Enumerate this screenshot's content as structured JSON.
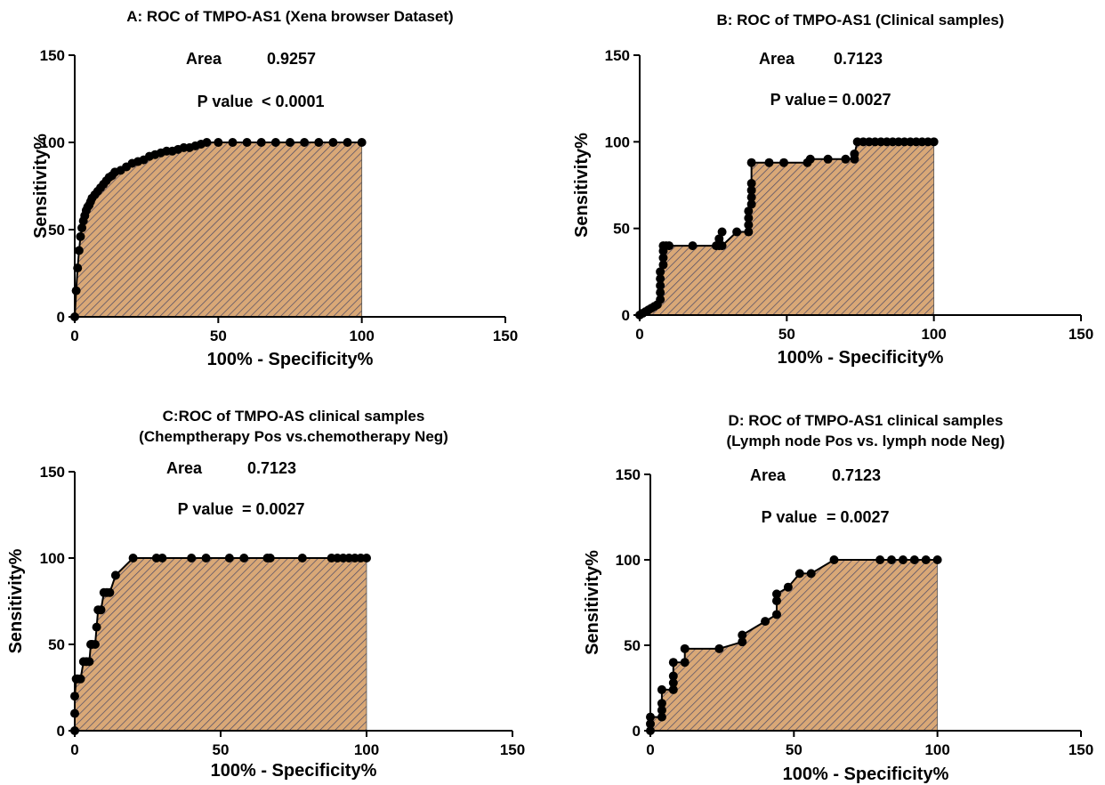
{
  "chart_data": [
    {
      "type": "area",
      "title_lines": [
        "A: ROC of TMPO-AS1 (Xena browser Dataset)"
      ],
      "xlabel": "100% - Specificity%",
      "ylabel": "Sensitivity%",
      "xlim": [
        0,
        150
      ],
      "ylim": [
        0,
        150
      ],
      "xticks": [
        0,
        50,
        100,
        150
      ],
      "yticks": [
        0,
        50,
        100,
        150
      ],
      "annotations": {
        "area_label": "Area",
        "area_value": "0.9257",
        "p_label": "P value",
        "p_value": "< 0.0001"
      },
      "fill_color": "#d9a877",
      "hatch_color": "#4a4a66",
      "marker_color": "#000000",
      "x": [
        0,
        0.5,
        1,
        1.5,
        2,
        2.5,
        3,
        3.5,
        4,
        4.5,
        5,
        5.5,
        6,
        7,
        8,
        9,
        10,
        11,
        12,
        13,
        14,
        16,
        18,
        20,
        22,
        24,
        26,
        28,
        30,
        32,
        34,
        36,
        38,
        40,
        42,
        44,
        46,
        50,
        55,
        60,
        65,
        70,
        75,
        80,
        85,
        90,
        95,
        100
      ],
      "y": [
        0,
        15,
        28,
        38,
        46,
        51,
        55,
        58,
        61,
        63,
        64,
        66,
        68,
        70,
        72,
        74,
        76,
        78,
        80,
        81,
        83,
        84,
        86,
        88,
        89,
        90,
        92,
        93,
        94,
        95,
        95,
        96,
        97,
        97,
        98,
        99,
        100,
        100,
        100,
        100,
        100,
        100,
        100,
        100,
        100,
        100,
        100,
        100
      ]
    },
    {
      "type": "area",
      "title_lines": [
        "B: ROC of TMPO-AS1 (Clinical samples)"
      ],
      "xlabel": "100% - Specificity%",
      "ylabel": "Sensitivity%",
      "xlim": [
        0,
        150
      ],
      "ylim": [
        0,
        150
      ],
      "xticks": [
        0,
        50,
        100,
        150
      ],
      "yticks": [
        0,
        50,
        100,
        150
      ],
      "annotations": {
        "area_label": "Area",
        "area_value": "0.7123",
        "p_label": "P value",
        "p_value": "= 0.0027"
      },
      "fill_color": "#d9a877",
      "hatch_color": "#4a4a66",
      "marker_color": "#000000",
      "x": [
        0,
        1,
        2,
        3,
        4,
        5,
        6,
        7,
        7,
        7,
        7,
        7,
        8,
        8,
        8,
        8,
        9,
        10,
        18,
        26,
        27,
        27,
        28,
        28,
        33,
        37,
        37,
        37,
        37,
        38,
        38,
        38,
        38,
        38,
        44,
        49,
        57,
        58,
        64,
        70,
        73,
        73,
        74,
        76,
        78,
        80,
        82,
        84,
        86,
        88,
        90,
        92,
        94,
        96,
        98,
        100
      ],
      "y": [
        0,
        1,
        2,
        3,
        4,
        5,
        6,
        9,
        13,
        17,
        21,
        25,
        29,
        33,
        37,
        40,
        40,
        40,
        40,
        40,
        40,
        44,
        48,
        40,
        48,
        48,
        52,
        56,
        60,
        64,
        68,
        72,
        76,
        88,
        88,
        88,
        88,
        90,
        90,
        90,
        90,
        93,
        100,
        100,
        100,
        100,
        100,
        100,
        100,
        100,
        100,
        100,
        100,
        100,
        100,
        100
      ]
    },
    {
      "type": "area",
      "title_lines": [
        "C:ROC of TMPO-AS clinical samples",
        "(Chemptherapy Pos  vs.chemotherapy Neg)"
      ],
      "xlabel": "100% - Specificity%",
      "ylabel": "Sensitivity%",
      "xlim": [
        0,
        150
      ],
      "ylim": [
        0,
        150
      ],
      "xticks": [
        0,
        50,
        100,
        150
      ],
      "yticks": [
        0,
        50,
        100,
        150
      ],
      "annotations": {
        "area_label": "Area",
        "area_value": "0.7123",
        "p_label": "P value",
        "p_value": "= 0.0027"
      },
      "fill_color": "#d9a877",
      "hatch_color": "#4a4a66",
      "marker_color": "#000000",
      "x": [
        0,
        0,
        0,
        0.5,
        1,
        2,
        3,
        4,
        5,
        5.5,
        6,
        7,
        7.5,
        8,
        9,
        10,
        11,
        12,
        14,
        20,
        28,
        30,
        40,
        45,
        53,
        58,
        66,
        67,
        78,
        88,
        90,
        92,
        94,
        96,
        98,
        100
      ],
      "y": [
        0,
        10,
        20,
        30,
        30,
        30,
        40,
        40,
        40,
        50,
        50,
        50,
        60,
        70,
        70,
        80,
        80,
        80,
        90,
        100,
        100,
        100,
        100,
        100,
        100,
        100,
        100,
        100,
        100,
        100,
        100,
        100,
        100,
        100,
        100,
        100
      ]
    },
    {
      "type": "area",
      "title_lines": [
        "D: ROC of TMPO-AS1 clinical samples",
        "(Lymph node Pos  vs.  lymph node Neg)"
      ],
      "xlabel": "100% - Specificity%",
      "ylabel": "Sensitivity%",
      "xlim": [
        0,
        150
      ],
      "ylim": [
        0,
        150
      ],
      "xticks": [
        0,
        50,
        100,
        150
      ],
      "yticks": [
        0,
        50,
        100,
        150
      ],
      "annotations": {
        "area_label": "Area",
        "area_value": "0.7123",
        "p_label": "P value",
        "p_value": "= 0.0027"
      },
      "fill_color": "#d9a877",
      "hatch_color": "#4a4a66",
      "marker_color": "#000000",
      "x": [
        0,
        0,
        0,
        4,
        4,
        4,
        4,
        8,
        8,
        8,
        8,
        12,
        12,
        24,
        32,
        32,
        40,
        44,
        44,
        44,
        48,
        52,
        56,
        64,
        80,
        84,
        88,
        92,
        96,
        100
      ],
      "y": [
        0,
        4,
        8,
        8,
        12,
        16,
        24,
        24,
        28,
        32,
        40,
        40,
        48,
        48,
        52,
        56,
        64,
        68,
        76,
        80,
        84,
        92,
        92,
        100,
        100,
        100,
        100,
        100,
        100,
        100
      ]
    }
  ]
}
